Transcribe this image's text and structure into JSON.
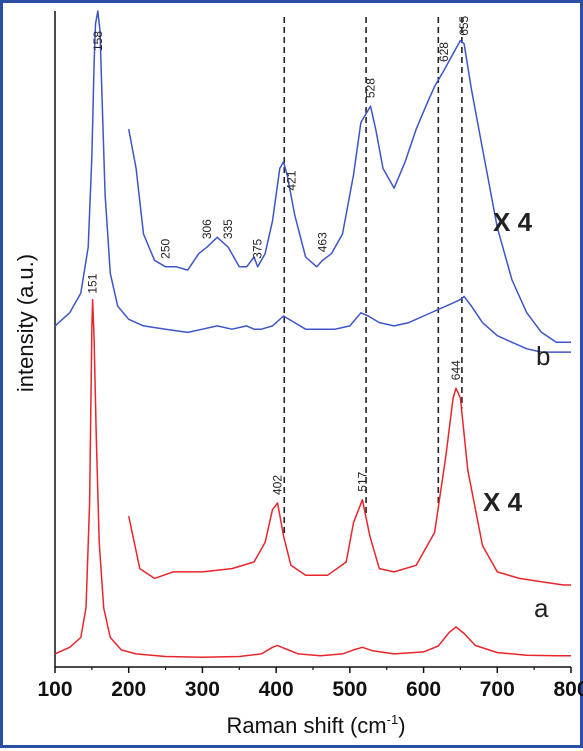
{
  "chart_data": {
    "type": "line",
    "xlabel": "Raman shift (cm",
    "xlabel_sup": "-1",
    "xlabel_suffix": ")",
    "ylabel": "intensity (a.u.)",
    "xlim": [
      100,
      800
    ],
    "ylim": [
      0,
      100
    ],
    "x_ticks": [
      "100",
      "200",
      "300",
      "400",
      "500",
      "600",
      "700",
      "800"
    ],
    "x_tick_values": [
      100,
      200,
      300,
      400,
      500,
      600,
      700,
      800
    ],
    "colors": {
      "a": "#e8262c",
      "b": "#3e55c8",
      "scale_a": "#e8262c",
      "scale_b": "#2d49b8"
    },
    "series": [
      {
        "name": "b",
        "label": "b",
        "color": "#3e55c8",
        "x": [
          100,
          120,
          135,
          145,
          150,
          153,
          155,
          158,
          161,
          164,
          168,
          175,
          185,
          200,
          220,
          250,
          280,
          300,
          320,
          340,
          360,
          370,
          380,
          395,
          410,
          425,
          440,
          460,
          480,
          500,
          515,
          525,
          540,
          560,
          580,
          600,
          620,
          640,
          650,
          655,
          665,
          680,
          700,
          720,
          740,
          760,
          780,
          800
        ],
        "y": [
          52,
          54,
          57,
          64,
          78,
          92,
          98,
          100,
          97,
          86,
          72,
          60,
          55,
          53,
          52,
          51.5,
          51,
          51.5,
          52,
          51.5,
          52,
          51.5,
          51.5,
          52,
          53.5,
          52.5,
          51.5,
          51.5,
          51.5,
          52,
          54,
          53.5,
          52.5,
          52,
          52.5,
          53.5,
          54.5,
          55.5,
          56,
          56.5,
          55,
          52.5,
          50.5,
          49.5,
          48.5,
          48,
          48,
          48
        ]
      },
      {
        "name": "b (X 4)",
        "label": "X 4",
        "color": "#3e55c8",
        "x": [
          200,
          210,
          220,
          235,
          250,
          265,
          280,
          295,
          306,
          320,
          335,
          350,
          360,
          370,
          375,
          385,
          395,
          405,
          410,
          415,
          425,
          440,
          455,
          463,
          475,
          490,
          505,
          515,
          528,
          535,
          545,
          560,
          575,
          590,
          605,
          615,
          628,
          640,
          650,
          655,
          665,
          680,
          700,
          720,
          740,
          760,
          780,
          800
        ],
        "y": [
          82,
          76,
          66,
          62,
          61,
          61,
          60.5,
          63,
          64,
          65.5,
          64,
          61,
          61,
          62.5,
          61,
          63,
          68,
          76,
          77,
          75,
          69,
          62.5,
          61,
          62,
          63,
          66,
          75,
          83,
          85.5,
          82,
          76,
          73,
          77,
          82,
          86,
          88.5,
          91,
          93.5,
          95.5,
          95,
          88,
          79,
          67,
          59,
          54,
          51,
          49.5,
          49.5
        ]
      },
      {
        "name": "a",
        "label": "a",
        "color": "#e8262c",
        "x": [
          100,
          120,
          135,
          142,
          147,
          150,
          151,
          153,
          156,
          160,
          166,
          175,
          190,
          210,
          250,
          300,
          350,
          380,
          395,
          402,
          410,
          430,
          460,
          490,
          505,
          517,
          530,
          560,
          600,
          620,
          635,
          644,
          655,
          670,
          700,
          740,
          780,
          800
        ],
        "y": [
          2,
          3,
          4.5,
          9,
          25,
          52,
          56,
          50,
          35,
          19,
          9,
          4.5,
          2.6,
          2,
          1.6,
          1.5,
          1.6,
          2,
          3,
          3.3,
          2.9,
          2,
          1.7,
          2,
          2.6,
          3,
          2.5,
          2,
          2.3,
          3.2,
          5.3,
          6.1,
          5.1,
          3.3,
          2.2,
          1.8,
          1.7,
          1.7
        ]
      },
      {
        "name": "a (X 4)",
        "label": "X 4",
        "color": "#e8262c",
        "x": [
          200,
          215,
          235,
          260,
          300,
          340,
          370,
          385,
          395,
          402,
          410,
          420,
          440,
          470,
          495,
          505,
          517,
          527,
          540,
          560,
          590,
          615,
          630,
          640,
          644,
          650,
          660,
          680,
          700,
          730,
          760,
          790,
          800
        ],
        "y": [
          23,
          15,
          13.5,
          14.5,
          14.5,
          15,
          16,
          19,
          24,
          25,
          20,
          15.5,
          14,
          14,
          16,
          22,
          25.5,
          20,
          15,
          14.5,
          15.5,
          20.5,
          32,
          41,
          42.5,
          41,
          30,
          18.5,
          14.5,
          13.5,
          13,
          12.5,
          12.5
        ]
      }
    ],
    "peak_labels_b": [
      "158",
      "250",
      "306",
      "335",
      "375",
      "421",
      "463",
      "528",
      "628",
      "655"
    ],
    "peak_label_values_b": [
      158,
      250,
      306,
      335,
      375,
      421,
      463,
      528,
      628,
      655
    ],
    "peak_labels_a": [
      "151",
      "402",
      "517",
      "644"
    ],
    "peak_label_values_a": [
      151,
      402,
      517,
      644
    ],
    "dashed_lines_x": [
      411,
      522,
      620,
      652
    ],
    "annotations": {
      "scale_b": "X 4",
      "scale_a": "X 4",
      "trace_b": "b",
      "trace_a": "a"
    }
  }
}
